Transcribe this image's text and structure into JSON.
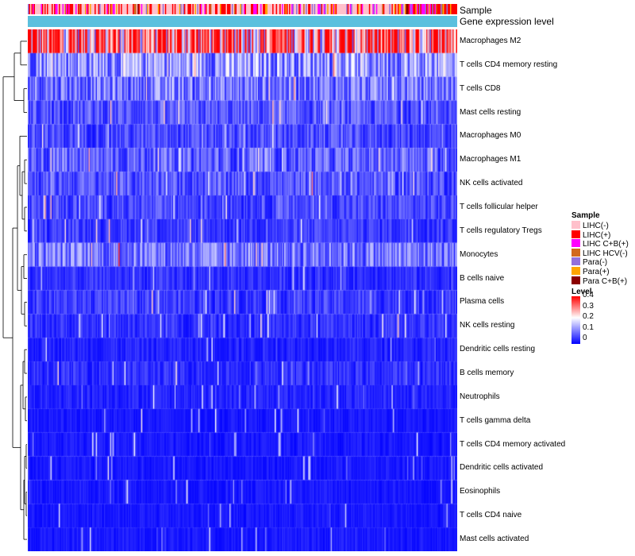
{
  "annotations": {
    "sample_label": "Sample",
    "gene_label": "Gene expression level"
  },
  "legend": {
    "sample_title": "Sample",
    "sample_items": [
      {
        "label": "LIHC(-)",
        "color": "#ffc0cb"
      },
      {
        "label": "LIHC(+)",
        "color": "#ff0000"
      },
      {
        "label": "LIHC C+B(+)",
        "color": "#ff00ff"
      },
      {
        "label": "LIHC HCV(-)",
        "color": "#d2691e"
      },
      {
        "label": "Para(-)",
        "color": "#9370db"
      },
      {
        "label": "Para(+)",
        "color": "#ffa500"
      },
      {
        "label": "Para C+B(+)",
        "color": "#8b0000"
      }
    ],
    "level_title": "Level",
    "level_ticks": [
      "0.4",
      "0.3",
      "0.2",
      "0.1",
      "0"
    ],
    "level_colors": {
      "low": "#0000ff",
      "mid": "#ffffff",
      "high": "#ff0000"
    }
  },
  "chart_data": {
    "type": "heatmap",
    "title": "",
    "rows": [
      "Macrophages M2",
      "T cells CD4 memory resting",
      "T cells CD8",
      "Mast cells resting",
      "Macrophages M0",
      "Macrophages M1",
      "NK cells activated",
      "T cells follicular helper",
      "T cells regulatory  Tregs",
      "Monocytes",
      "B cells naive",
      "Plasma cells",
      "NK cells resting",
      "Dendritic cells resting",
      "B cells memory",
      "Neutrophils",
      "T cells gamma delta",
      "T cells CD4 memory activated",
      "Dendritic cells activated",
      "Eosinophils",
      "T cells CD4 naive",
      "Mast cells activated"
    ],
    "row_mean_level": [
      0.33,
      0.13,
      0.1,
      0.07,
      0.06,
      0.08,
      0.07,
      0.06,
      0.05,
      0.1,
      0.04,
      0.05,
      0.04,
      0.03,
      0.04,
      0.03,
      0.02,
      0.02,
      0.02,
      0.02,
      0.02,
      0.02
    ],
    "columns_count": 360,
    "level_range": [
      0,
      0.4
    ],
    "gene_expression_annotation_color": "#5bc0de",
    "sample_annotation_series": [
      "LIHC(-)",
      "LIHC(+)",
      "LIHC C+B(+)",
      "LIHC HCV(-)",
      "Para(-)",
      "Para(+)",
      "Para C+B(+)"
    ]
  }
}
